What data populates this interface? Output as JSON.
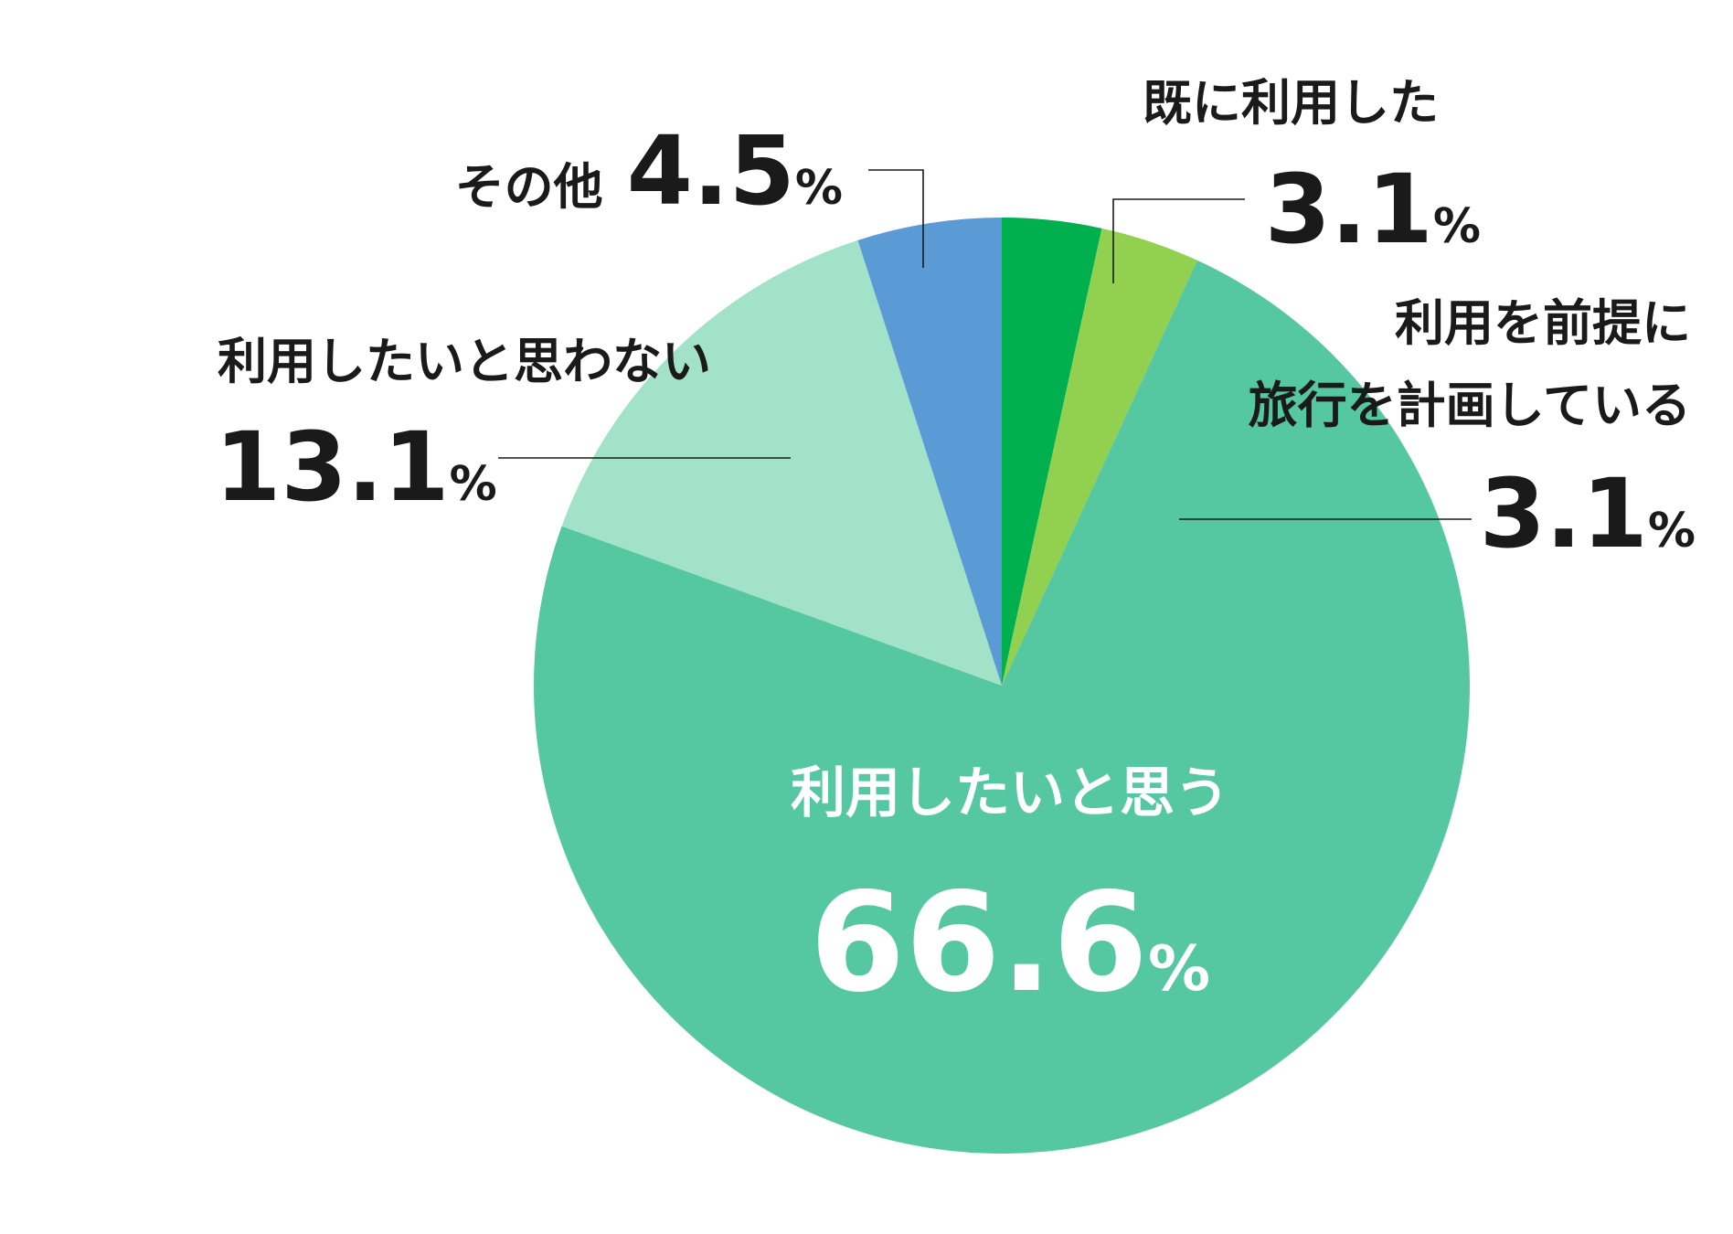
{
  "chart_data": {
    "type": "pie",
    "title": "",
    "unit": "%",
    "start_angle_deg": 0,
    "direction": "clockwise",
    "slices": [
      {
        "label": "既に利用した",
        "lines": [
          "既に利用した"
        ],
        "value": 3.1,
        "value_text": "3.1",
        "color": "#00b04f"
      },
      {
        "label": "利用を前提に旅行を計画している",
        "lines": [
          "利用を前提に",
          "旅行を計画している"
        ],
        "value": 3.1,
        "value_text": "3.1",
        "color": "#92d050"
      },
      {
        "label": "利用したいと思う",
        "lines": [
          "利用したいと思う"
        ],
        "value": 66.6,
        "value_text": "66.6",
        "color": "#55c7a1"
      },
      {
        "label": "利用したいと思わない",
        "lines": [
          "利用したいと思わない"
        ],
        "value": 13.1,
        "value_text": "13.1",
        "color": "#a2e2c8"
      },
      {
        "label": "その他",
        "lines": [
          "その他"
        ],
        "value": 4.5,
        "value_text": "4.5",
        "color": "#5b9bd5"
      }
    ]
  }
}
